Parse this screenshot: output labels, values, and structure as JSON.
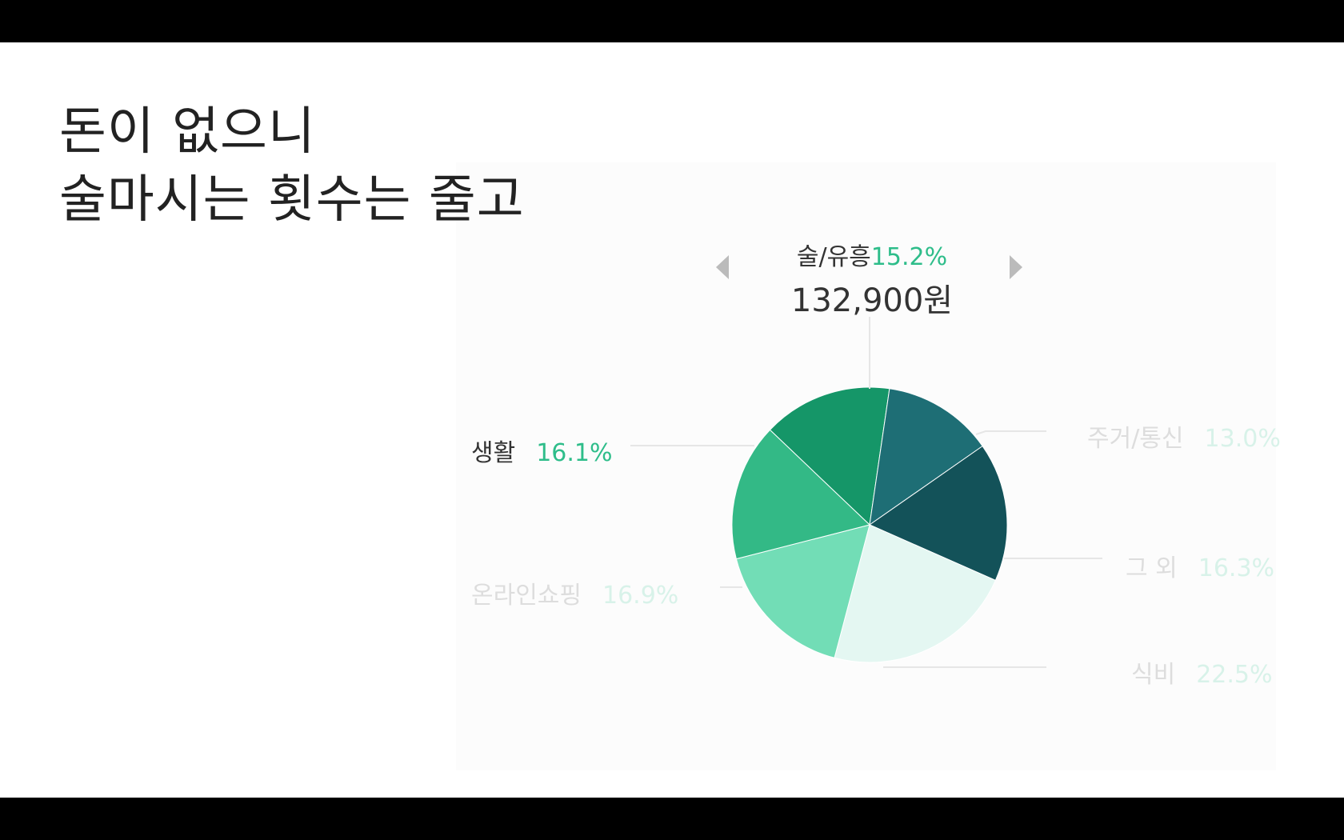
{
  "title_lines": [
    "돈이 없으니",
    "술마시는 횟수는 줄고"
  ],
  "selected": {
    "name": "술/유흥",
    "percent": "15.2%",
    "amount": "132,900원"
  },
  "chart_data": {
    "type": "pie",
    "title": "",
    "slices": [
      {
        "name": "술/유흥",
        "value": 15.2,
        "label": "15.2%",
        "color": "#159668",
        "active": true
      },
      {
        "name": "주거/통신",
        "value": 13.0,
        "label": "13.0%",
        "color": "#1e6e75",
        "active": false
      },
      {
        "name": "그 외",
        "value": 16.3,
        "label": "16.3%",
        "color": "#135259",
        "active": false
      },
      {
        "name": "식비",
        "value": 22.5,
        "label": "22.5%",
        "color": "#e4f7f2",
        "active": false
      },
      {
        "name": "온라인쇼핑",
        "value": 16.9,
        "label": "16.9%",
        "color": "#72ddb6",
        "active": false
      },
      {
        "name": "생활",
        "value": 16.1,
        "label": "16.1%",
        "color": "#33b986",
        "active": false
      }
    ],
    "colors": {
      "active_name": "#333333",
      "active_percent": "#2ebd8a",
      "inactive_name": "#dddddd",
      "inactive_percent": "#d8f2e9",
      "leader_line": "#e6e6e6"
    }
  }
}
